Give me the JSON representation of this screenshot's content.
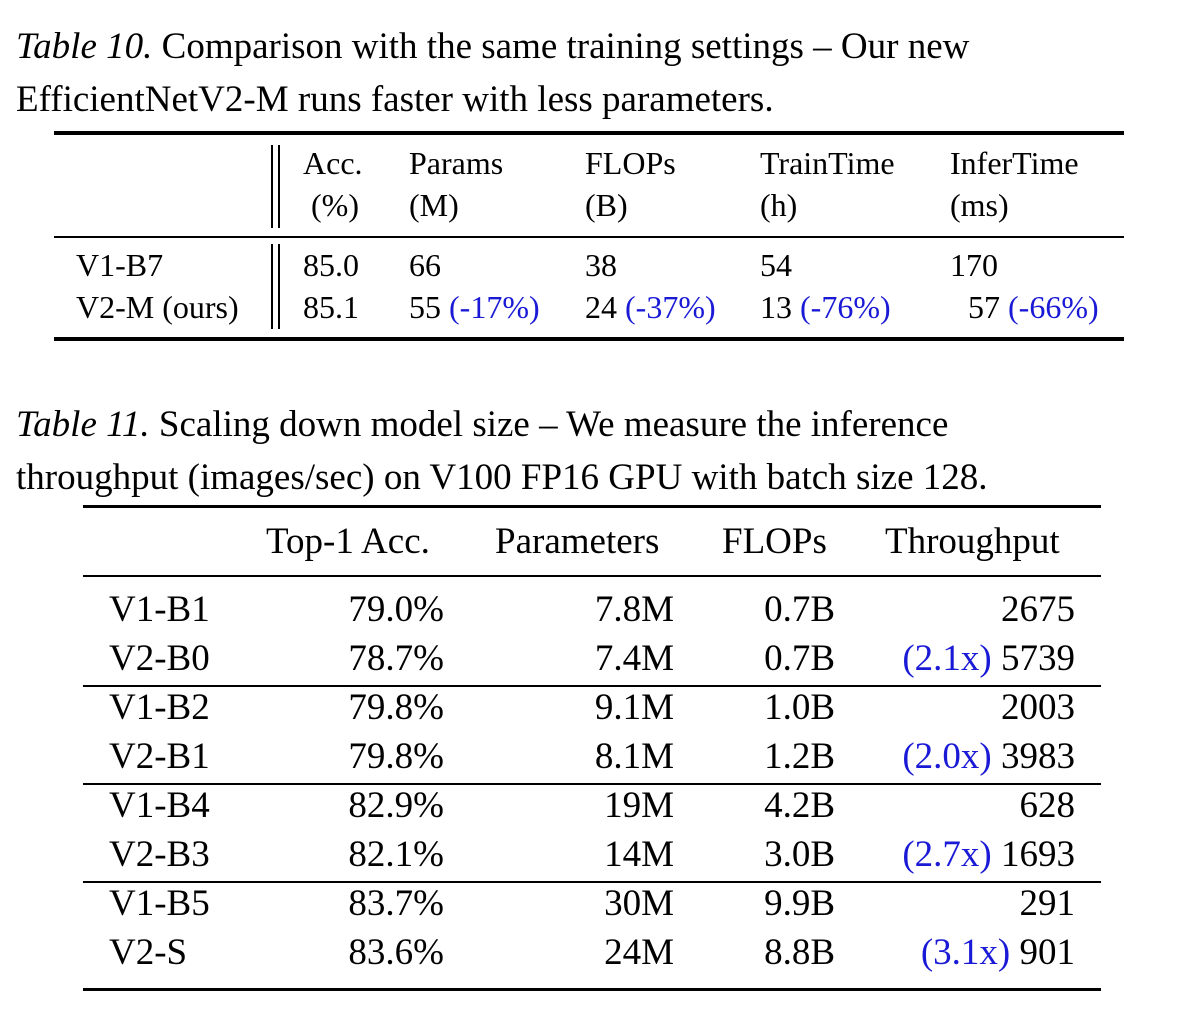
{
  "table10": {
    "caption_label": "Table 10.",
    "caption_line1": "Comparison with the same training settings – Our new",
    "caption_line2": "EfficientNetV2-M runs faster with less parameters.",
    "headers": [
      {
        "l1": "Acc.",
        "l2": "(%)"
      },
      {
        "l1": "Params",
        "l2": "(M)"
      },
      {
        "l1": "FLOPs",
        "l2": "(B)"
      },
      {
        "l1": "TrainTime",
        "l2": "(h)"
      },
      {
        "l1": "InferTime",
        "l2": "(ms)"
      }
    ],
    "rows": [
      {
        "model": "V1-B7",
        "acc": "85.0",
        "params": "66",
        "params_delta": "",
        "flops": "38",
        "flops_delta": "",
        "train": "54",
        "train_delta": "",
        "infer": "170",
        "infer_delta": ""
      },
      {
        "model": "V2-M (ours)",
        "acc": "85.1",
        "params": "55",
        "params_delta": "(-17%)",
        "flops": "24",
        "flops_delta": "(-37%)",
        "train": "13",
        "train_delta": "(-76%)",
        "infer": "57",
        "infer_delta": "(-66%)"
      }
    ]
  },
  "table11": {
    "caption_label": "Table 11.",
    "caption_line1": "Scaling down model size – We measure the inference",
    "caption_line2": "throughput (images/sec) on V100 FP16 GPU with batch size 128.",
    "headers": [
      "Top-1 Acc.",
      "Parameters",
      "FLOPs",
      "Throughput"
    ],
    "rows": [
      {
        "model": "V1-B1",
        "acc": "79.0%",
        "params": "7.8M",
        "flops": "0.7B",
        "speedup": "",
        "throughput": "2675"
      },
      {
        "model": "V2-B0",
        "acc": "78.7%",
        "params": "7.4M",
        "flops": "0.7B",
        "speedup": "(2.1x)",
        "throughput": "5739"
      },
      {
        "model": "V1-B2",
        "acc": "79.8%",
        "params": "9.1M",
        "flops": "1.0B",
        "speedup": "",
        "throughput": "2003"
      },
      {
        "model": "V2-B1",
        "acc": "79.8%",
        "params": "8.1M",
        "flops": "1.2B",
        "speedup": "(2.0x)",
        "throughput": "3983"
      },
      {
        "model": "V1-B4",
        "acc": "82.9%",
        "params": "19M",
        "flops": "4.2B",
        "speedup": "",
        "throughput": "628"
      },
      {
        "model": "V2-B3",
        "acc": "82.1%",
        "params": "14M",
        "flops": "3.0B",
        "speedup": "(2.7x)",
        "throughput": "1693"
      },
      {
        "model": "V1-B5",
        "acc": "83.7%",
        "params": "30M",
        "flops": "9.9B",
        "speedup": "",
        "throughput": "291"
      },
      {
        "model": "V2-S",
        "acc": "83.6%",
        "params": "24M",
        "flops": "8.8B",
        "speedup": "(3.1x)",
        "throughput": "901"
      }
    ]
  }
}
